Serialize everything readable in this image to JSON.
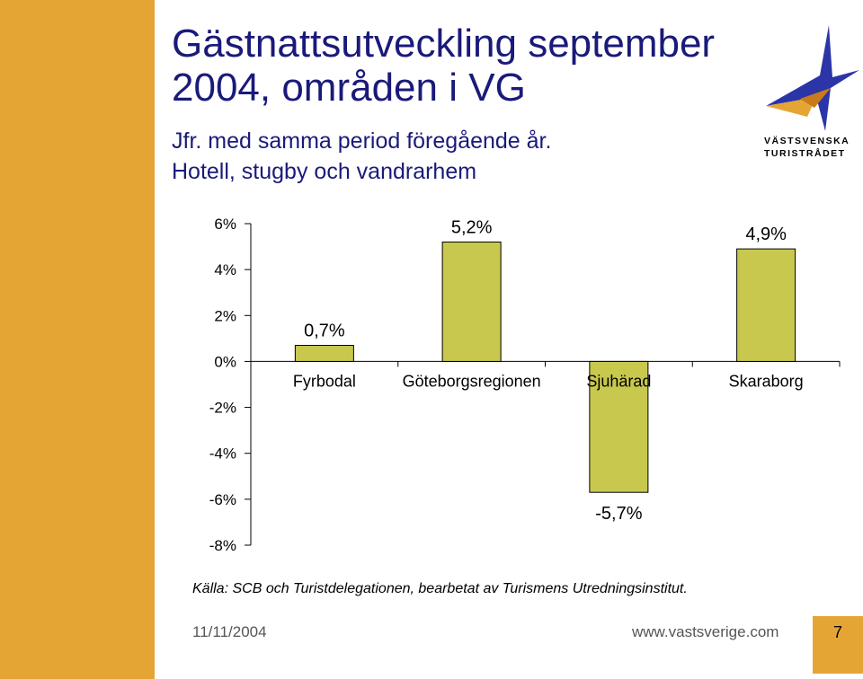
{
  "header": {
    "title": "Gästnattsutveckling september 2004, områden i VG",
    "subtitle_line1": "Jfr. med samma period föregående år.",
    "subtitle_line2": "Hotell, stugby och vandrarhem"
  },
  "logo": {
    "line1": "VÄSTSVENSKA",
    "line2": "TURISTRÅDET"
  },
  "colors": {
    "sidebar": "#E5A535",
    "title": "#1A1A7A",
    "bar_fill": "#C8C84E",
    "bar_stroke": "#000000"
  },
  "chart_data": {
    "type": "bar",
    "categories": [
      "Fyrbodal",
      "Göteborgsregionen",
      "Sjuhärad",
      "Skaraborg"
    ],
    "values": [
      0.7,
      5.2,
      -5.7,
      4.9
    ],
    "data_labels": [
      "0,7%",
      "5,2%",
      "-5,7%",
      "4,9%"
    ],
    "ylim": [
      -8,
      6
    ],
    "yticks": [
      6,
      4,
      2,
      0,
      -2,
      -4,
      -6,
      -8
    ],
    "ytick_labels": [
      "6%",
      "4%",
      "2%",
      "0%",
      "-2%",
      "-4%",
      "-6%",
      "-8%"
    ],
    "grid": false,
    "legend": "none"
  },
  "source": "Källa: SCB och Turistdelegationen, bearbetat av Turismens Utredningsinstitut.",
  "footer": {
    "date": "11/11/2004",
    "url": "www.vastsverige.com",
    "page": "7"
  }
}
